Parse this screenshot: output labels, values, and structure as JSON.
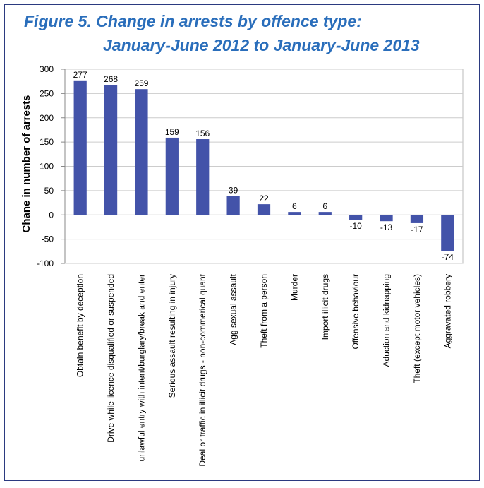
{
  "chart_data": {
    "type": "bar",
    "title_lines": [
      "Figure 5. Change in arrests by offence type:",
      "January-June 2012 to January-June 2013"
    ],
    "y_label": "Chane in number of arrests",
    "categories": [
      "Obtain benefit by deception",
      "Drive while licence disqualified or suspended",
      "unlawful entry with intent/burglary/break and enter",
      "Serious assault resulting in injury",
      "Deal or traffic in illicit drugs - non-commerical quant",
      "Agg sexual assault",
      "Theft from a person",
      "Murder",
      "Import illicit drugs",
      "Offensive behaviour",
      "Aduction and kidnapping",
      "Theft (except motor vehicles)",
      "Aggravated robbery"
    ],
    "values": [
      277,
      268,
      259,
      159,
      156,
      39,
      22,
      6,
      6,
      -10,
      -13,
      -17,
      -74
    ],
    "color": "#4353a9",
    "ylim": [
      -100,
      300
    ],
    "yticks": [
      -100,
      -50,
      0,
      50,
      100,
      150,
      200,
      250,
      300
    ],
    "grid": true
  }
}
